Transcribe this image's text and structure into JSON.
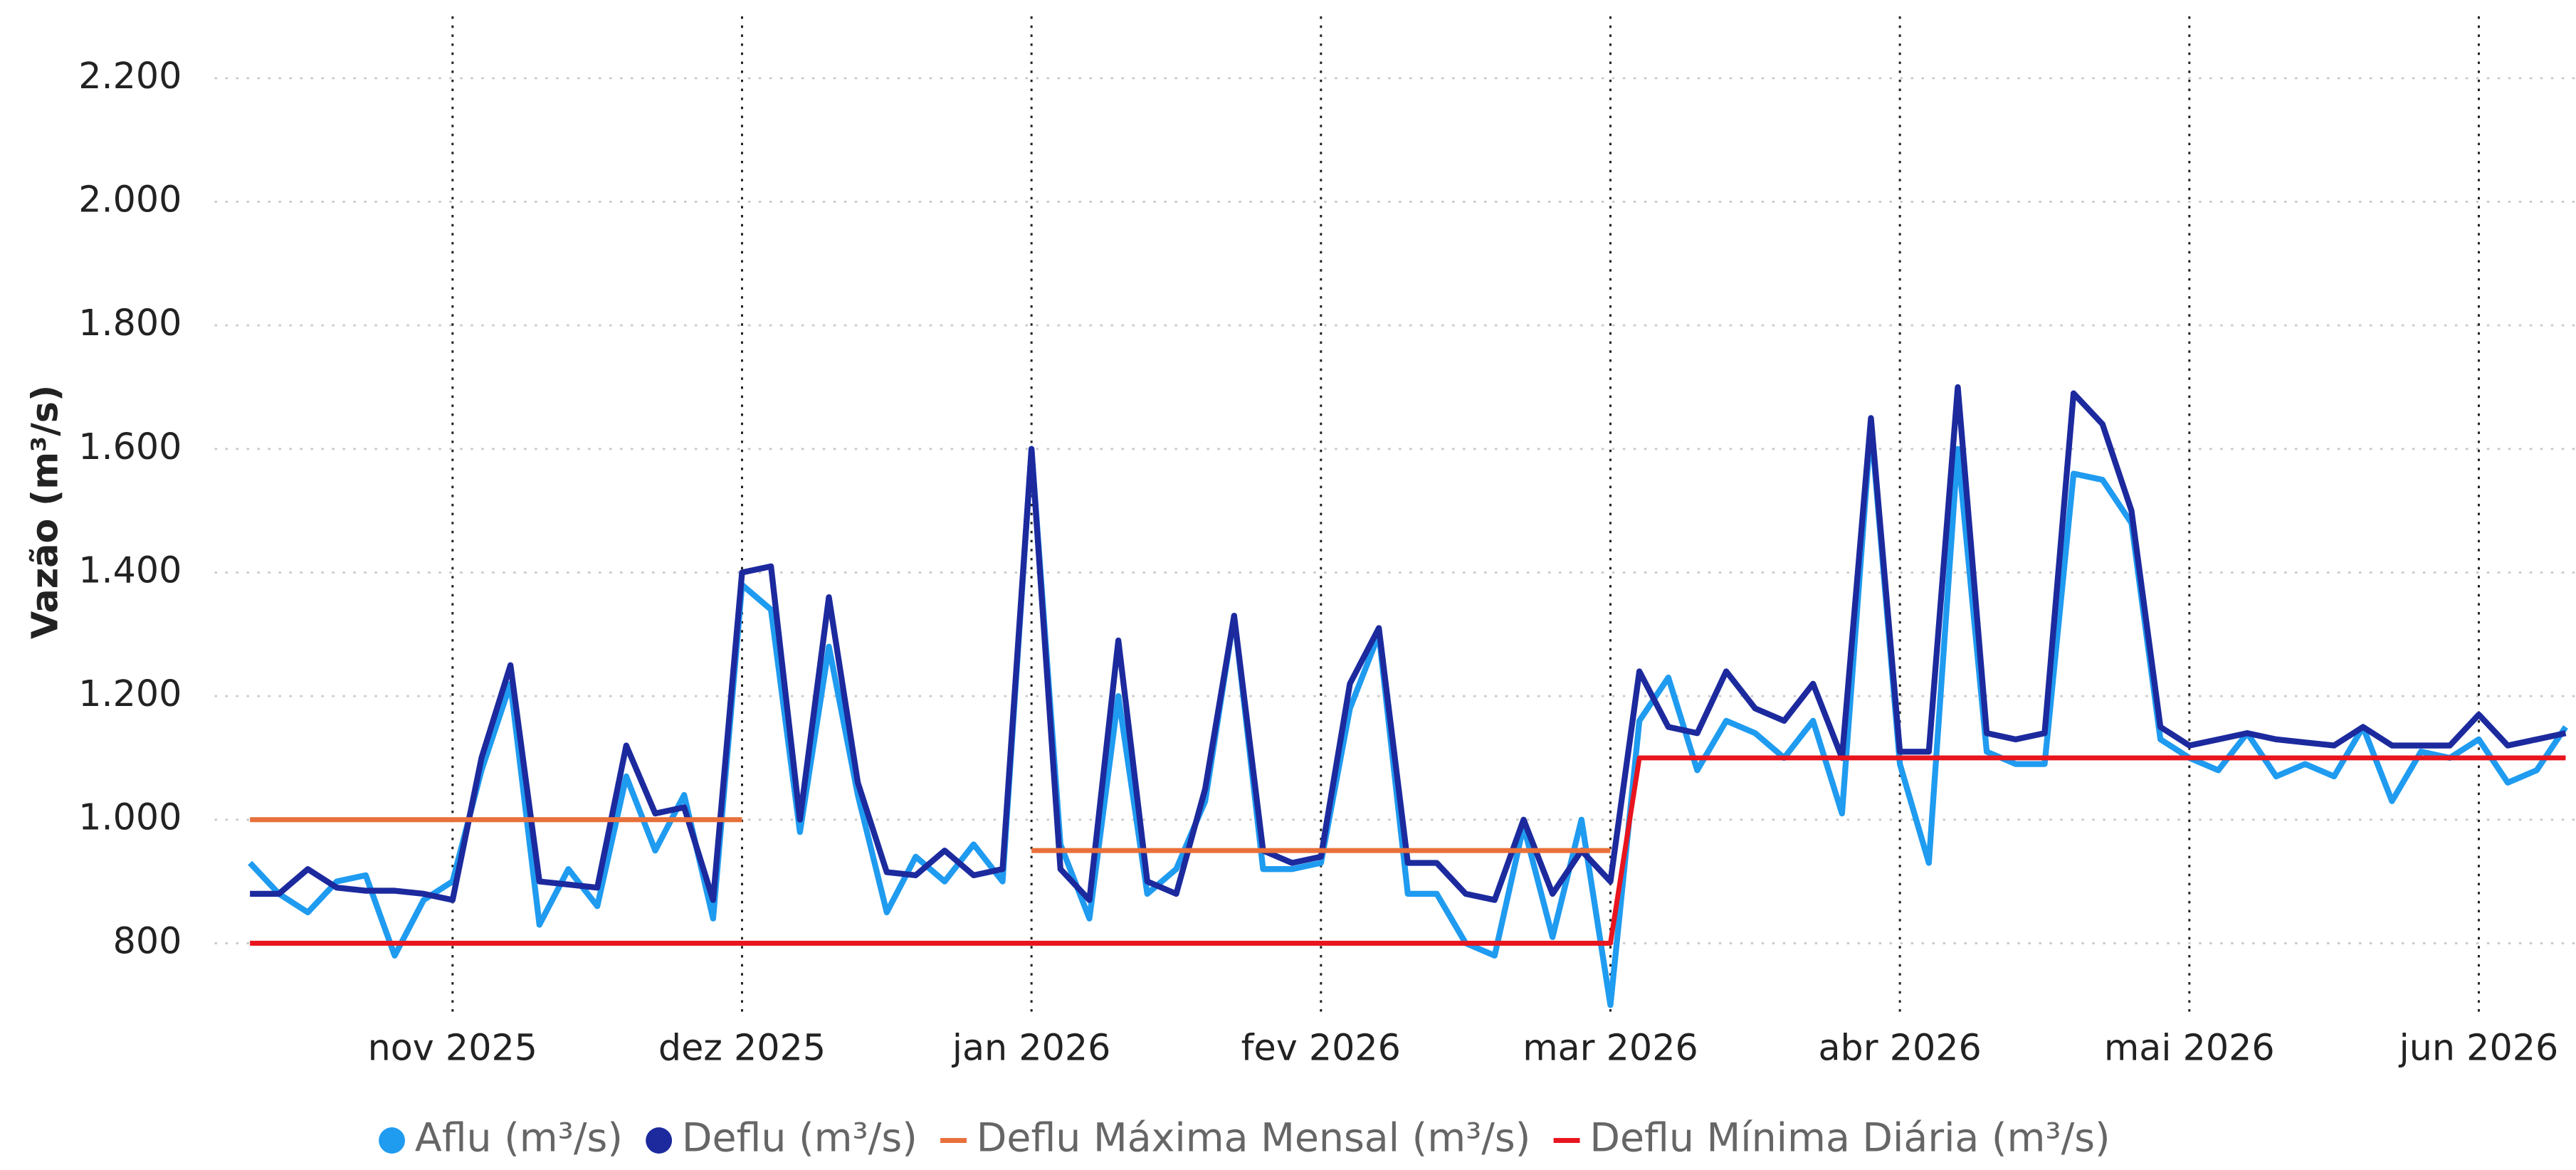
{
  "chart_data": {
    "type": "line",
    "y_label": "Vazão (m³/s)",
    "x": [
      10.3,
      10.4,
      10.5,
      10.6,
      10.7,
      10.8,
      10.9,
      11.0,
      11.1,
      11.2,
      11.3,
      11.4,
      11.5,
      11.6,
      11.7,
      11.8,
      11.9,
      12.0,
      12.1,
      12.2,
      12.3,
      12.4,
      12.5,
      12.6,
      12.7,
      12.8,
      12.9,
      13.0,
      13.1,
      13.2,
      13.3,
      13.4,
      13.5,
      13.6,
      13.7,
      13.8,
      13.9,
      14.0,
      14.1,
      14.2,
      14.3,
      14.4,
      14.5,
      14.6,
      14.7,
      14.8,
      14.9,
      15.0,
      15.1,
      15.2,
      15.3,
      15.4,
      15.5,
      15.6,
      15.7,
      15.8,
      15.9,
      16.0,
      16.1,
      16.2,
      16.3,
      16.4,
      16.5,
      16.6,
      16.7,
      16.8,
      16.9,
      17.0,
      17.1,
      17.2,
      17.3,
      17.4,
      17.5,
      17.6,
      17.7,
      17.8,
      17.9,
      18.0,
      18.1,
      18.2,
      18.3
    ],
    "series": [
      {
        "name": "Aflu (m³/s)",
        "color": "#1f9bf0",
        "legend_marker": "circle",
        "values": [
          930,
          880,
          850,
          900,
          910,
          780,
          870,
          900,
          1080,
          1220,
          830,
          920,
          860,
          1070,
          950,
          1040,
          840,
          1380,
          1340,
          980,
          1280,
          1040,
          850,
          940,
          900,
          960,
          900,
          1600,
          960,
          840,
          1200,
          880,
          920,
          1030,
          1330,
          920,
          920,
          930,
          1180,
          1300,
          880,
          880,
          800,
          780,
          990,
          810,
          1000,
          700,
          1160,
          1230,
          1080,
          1160,
          1140,
          1100,
          1160,
          1010,
          1640,
          1090,
          930,
          1600,
          1110,
          1090,
          1090,
          1560,
          1550,
          1480,
          1130,
          1100,
          1080,
          1140,
          1070,
          1090,
          1070,
          1150,
          1030,
          1110,
          1100,
          1130,
          1060,
          1080,
          1150
        ]
      },
      {
        "name": "Deflu (m³/s)",
        "color": "#1c2a9e",
        "legend_marker": "circle",
        "values": [
          880,
          880,
          920,
          890,
          885,
          885,
          880,
          870,
          1100,
          1250,
          900,
          895,
          890,
          1120,
          1010,
          1020,
          870,
          1400,
          1410,
          1000,
          1360,
          1060,
          915,
          910,
          950,
          910,
          920,
          1600,
          920,
          870,
          1290,
          900,
          880,
          1050,
          1330,
          950,
          930,
          940,
          1220,
          1310,
          930,
          930,
          880,
          870,
          1000,
          880,
          950,
          900,
          1240,
          1150,
          1140,
          1240,
          1180,
          1160,
          1220,
          1100,
          1650,
          1110,
          1110,
          1700,
          1140,
          1130,
          1140,
          1690,
          1640,
          1500,
          1150,
          1120,
          1130,
          1140,
          1130,
          1125,
          1120,
          1150,
          1120,
          1120,
          1120,
          1170,
          1120,
          1130,
          1140
        ]
      },
      {
        "name": "Deflu Máxima Mensal (m³/s)",
        "color": "#e8703a",
        "legend_marker": "line",
        "values": [
          1000,
          1000,
          1000,
          1000,
          1000,
          1000,
          1000,
          1000,
          1000,
          1000,
          1000,
          1000,
          1000,
          1000,
          1000,
          1000,
          1000,
          1000,
          null,
          null,
          null,
          null,
          null,
          null,
          null,
          null,
          null,
          950,
          950,
          950,
          950,
          950,
          950,
          950,
          950,
          950,
          950,
          950,
          950,
          950,
          950,
          950,
          950,
          950,
          950,
          950,
          950,
          950,
          null,
          null,
          null,
          null,
          null,
          null,
          null,
          null,
          null,
          null,
          null,
          null,
          null,
          null,
          null,
          null,
          null,
          null,
          null,
          null,
          null,
          null,
          null,
          null,
          null,
          null,
          null,
          null,
          null,
          null,
          null,
          null,
          null
        ]
      },
      {
        "name": "Deflu Mínima Diária (m³/s)",
        "color": "#e8141e",
        "legend_marker": "line",
        "values": [
          800,
          800,
          800,
          800,
          800,
          800,
          800,
          800,
          800,
          800,
          800,
          800,
          800,
          800,
          800,
          800,
          800,
          800,
          800,
          800,
          800,
          800,
          800,
          800,
          800,
          800,
          800,
          800,
          800,
          800,
          800,
          800,
          800,
          800,
          800,
          800,
          800,
          800,
          800,
          800,
          800,
          800,
          800,
          800,
          800,
          800,
          800,
          800,
          1100,
          1100,
          1100,
          1100,
          1100,
          1100,
          1100,
          1100,
          1100,
          1100,
          1100,
          1100,
          1100,
          1100,
          1100,
          1100,
          1100,
          1100,
          1100,
          1100,
          1100,
          1100,
          1100,
          1100,
          1100,
          1100,
          1100,
          1100,
          1100,
          1100,
          1100,
          1100,
          1100
        ]
      }
    ],
    "xlim": [
      10.25,
      18.32
    ],
    "xticks": [
      {
        "value": 11,
        "label": "nov 2025"
      },
      {
        "value": 12,
        "label": "dez 2025"
      },
      {
        "value": 13,
        "label": "jan 2026"
      },
      {
        "value": 14,
        "label": "fev 2026"
      },
      {
        "value": 15,
        "label": "mar 2026"
      },
      {
        "value": 16,
        "label": "abr 2026"
      },
      {
        "value": 17,
        "label": "mai 2026"
      },
      {
        "value": 18,
        "label": "jun 2026"
      }
    ],
    "ylim": [
      680,
      2300
    ],
    "yticks": [
      800,
      {
        "value": 1000,
        "label": "1.000"
      },
      {
        "value": 1200,
        "label": "1.200"
      },
      {
        "value": 1400,
        "label": "1.400"
      },
      {
        "value": 1600,
        "label": "1.600"
      },
      {
        "value": 1800,
        "label": "1.800"
      },
      {
        "value": 2000,
        "label": "2.000"
      },
      {
        "value": 2200,
        "label": "2.200"
      }
    ],
    "grid": true
  }
}
